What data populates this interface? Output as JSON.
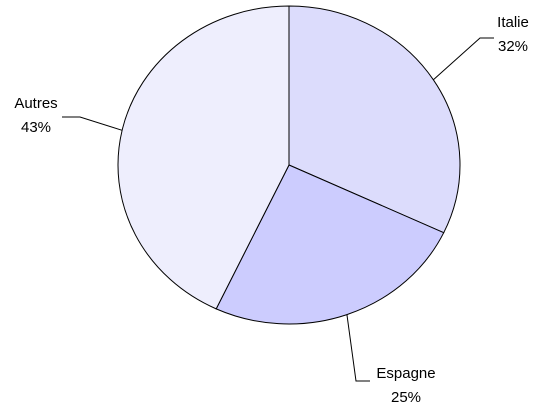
{
  "chart_data": {
    "type": "pie",
    "categories": [
      "Italie",
      "Espagne",
      "Autres"
    ],
    "values": [
      32,
      25,
      43
    ],
    "value_labels": [
      "32%",
      "25%",
      "43%"
    ],
    "colors": [
      "#dcdcfc",
      "#ccccfe",
      "#eeeefd"
    ]
  }
}
